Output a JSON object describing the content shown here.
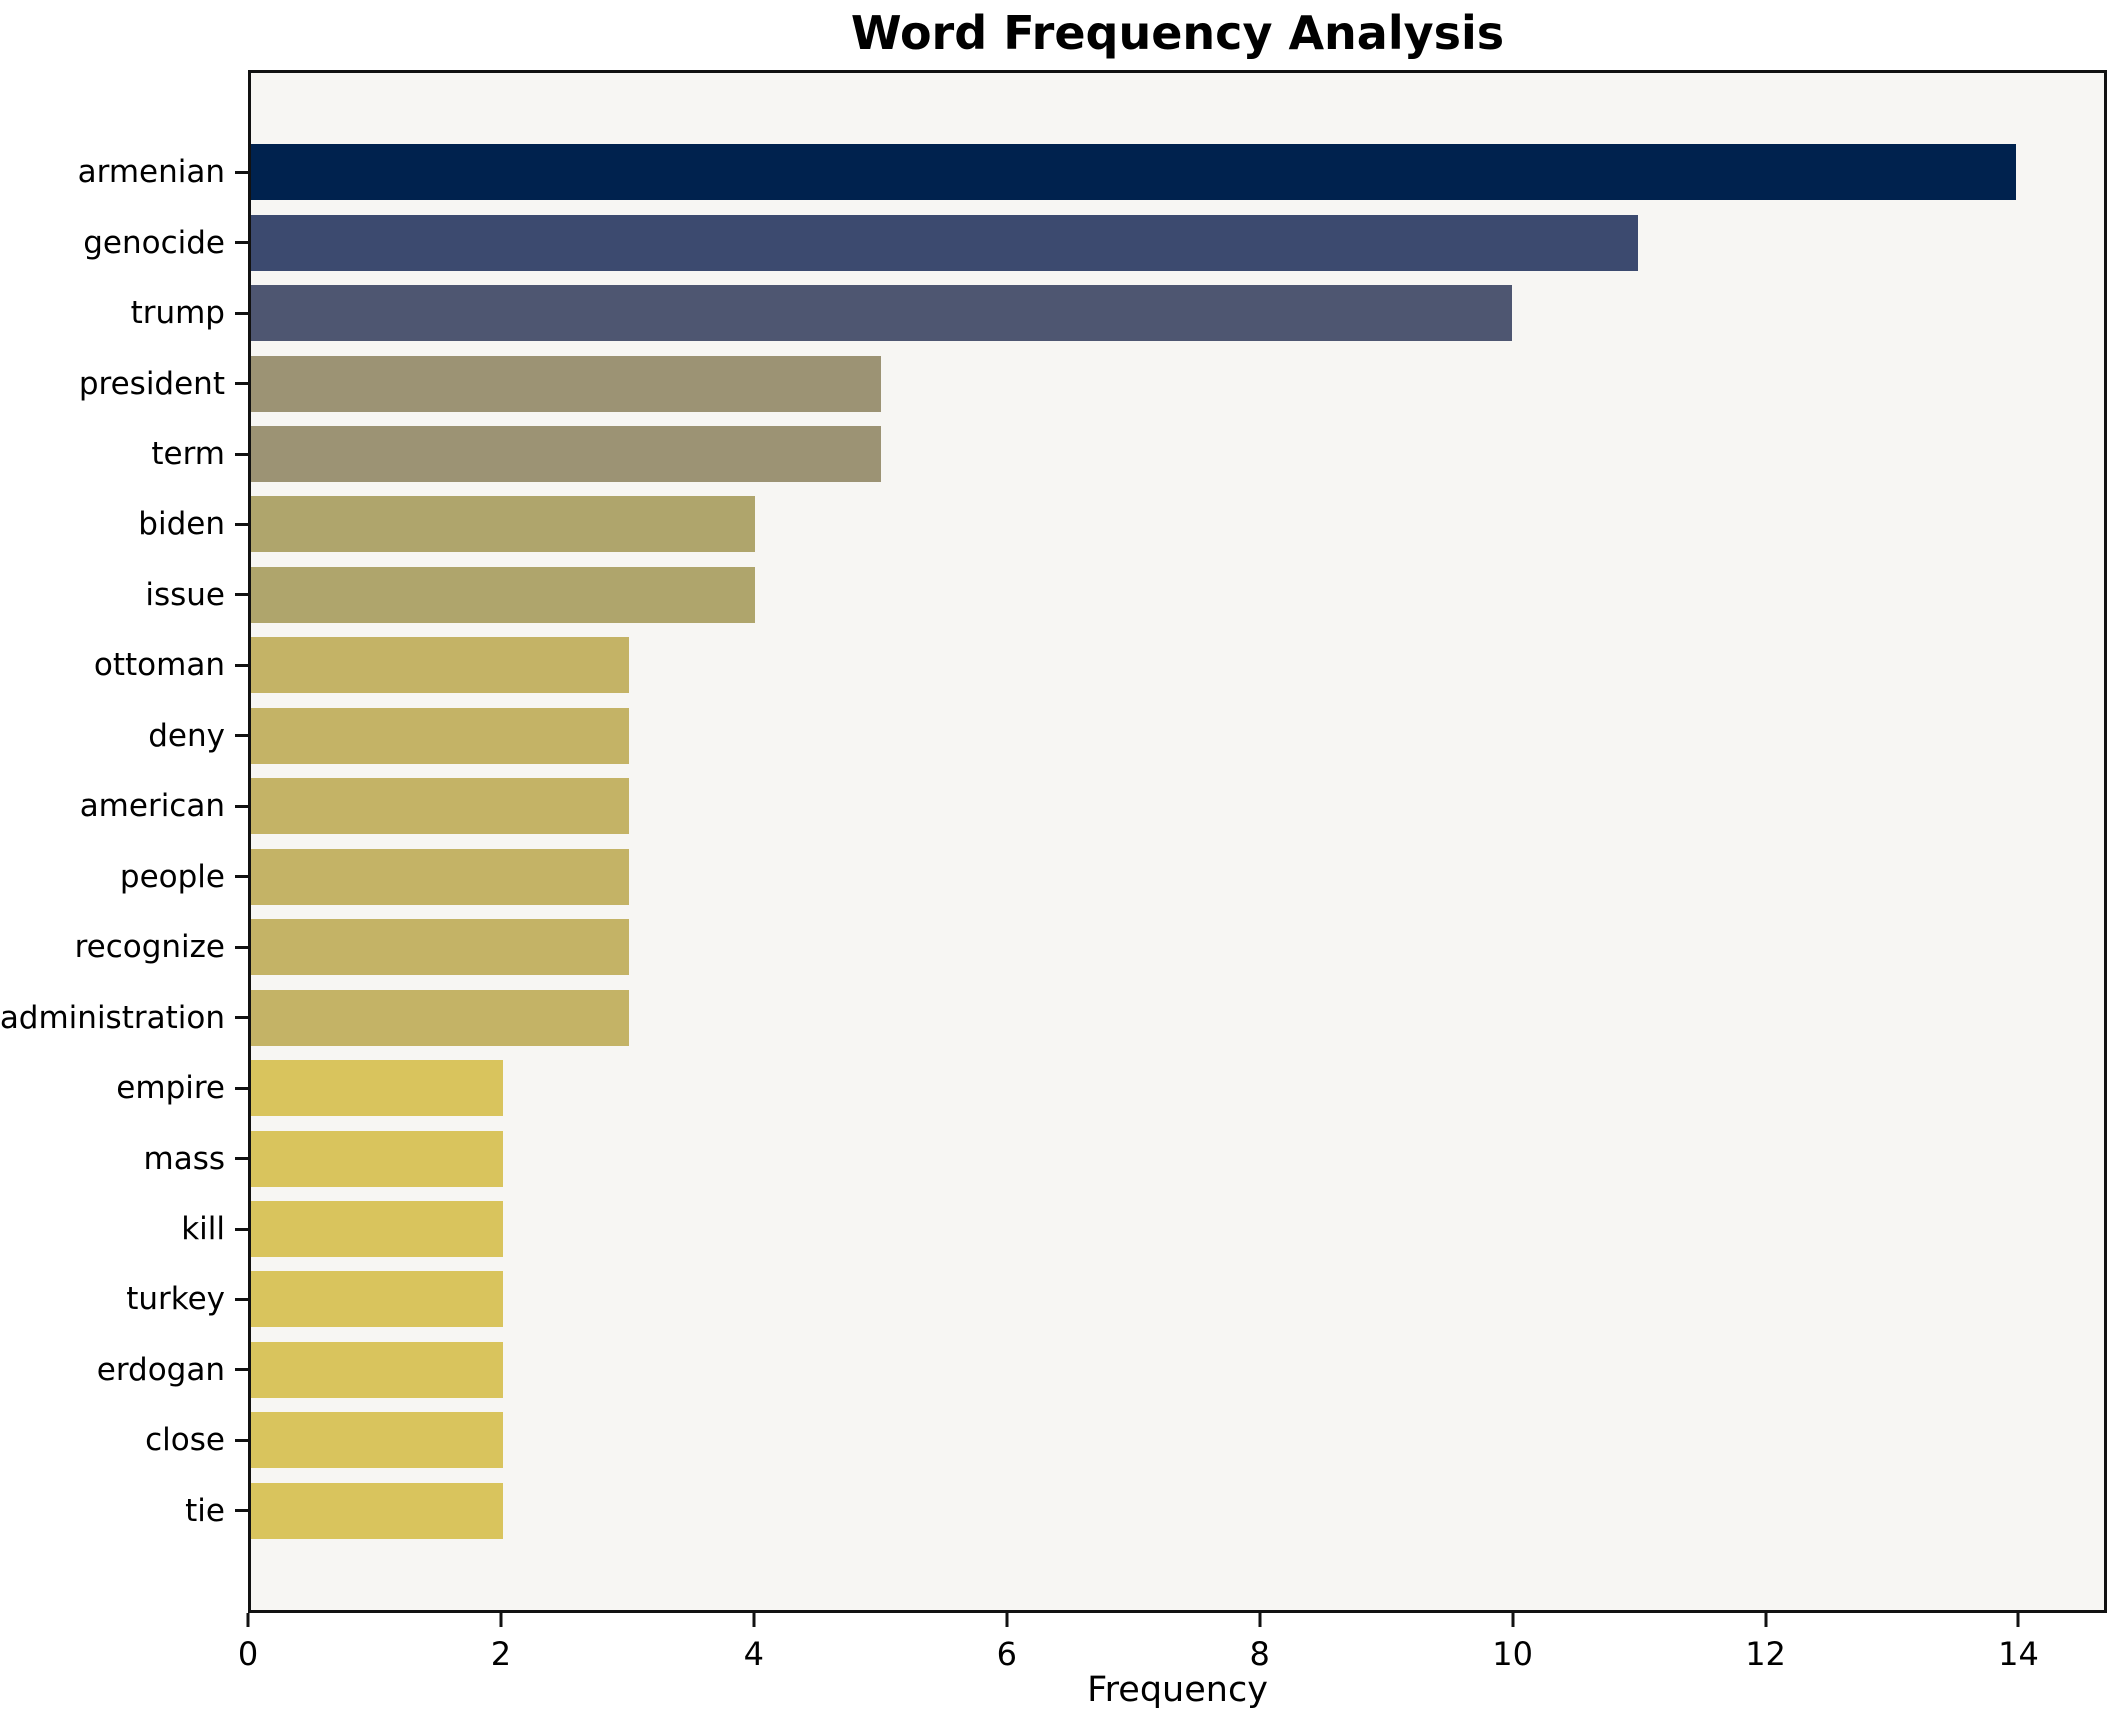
{
  "chart_data": {
    "type": "bar",
    "orientation": "horizontal",
    "title": "Word Frequency Analysis",
    "xlabel": "Frequency",
    "ylabel": "",
    "categories": [
      "armenian",
      "genocide",
      "trump",
      "president",
      "term",
      "biden",
      "issue",
      "ottoman",
      "deny",
      "american",
      "people",
      "recognize",
      "administration",
      "empire",
      "mass",
      "kill",
      "turkey",
      "erdogan",
      "close",
      "tie"
    ],
    "values": [
      14,
      11,
      10,
      5,
      5,
      4,
      4,
      3,
      3,
      3,
      3,
      3,
      3,
      2,
      2,
      2,
      2,
      2,
      2,
      2
    ],
    "bar_colors": [
      "#00224e",
      "#3c4a6f",
      "#4e5671",
      "#9c9374",
      "#9c9374",
      "#afa56c",
      "#afa56c",
      "#c4b366",
      "#c4b366",
      "#c4b366",
      "#c4b366",
      "#c4b366",
      "#c4b366",
      "#d9c45d",
      "#d9c45d",
      "#d9c45d",
      "#d9c45d",
      "#d9c45d",
      "#d9c45d",
      "#d9c45d"
    ],
    "xticks": [
      0,
      2,
      4,
      6,
      8,
      10,
      12,
      14
    ],
    "xlim": [
      0,
      14.7
    ],
    "grid": false,
    "legend": "none",
    "plot_background": "#f7f6f3",
    "axis_color": "#111111",
    "text_color": "#000000"
  }
}
